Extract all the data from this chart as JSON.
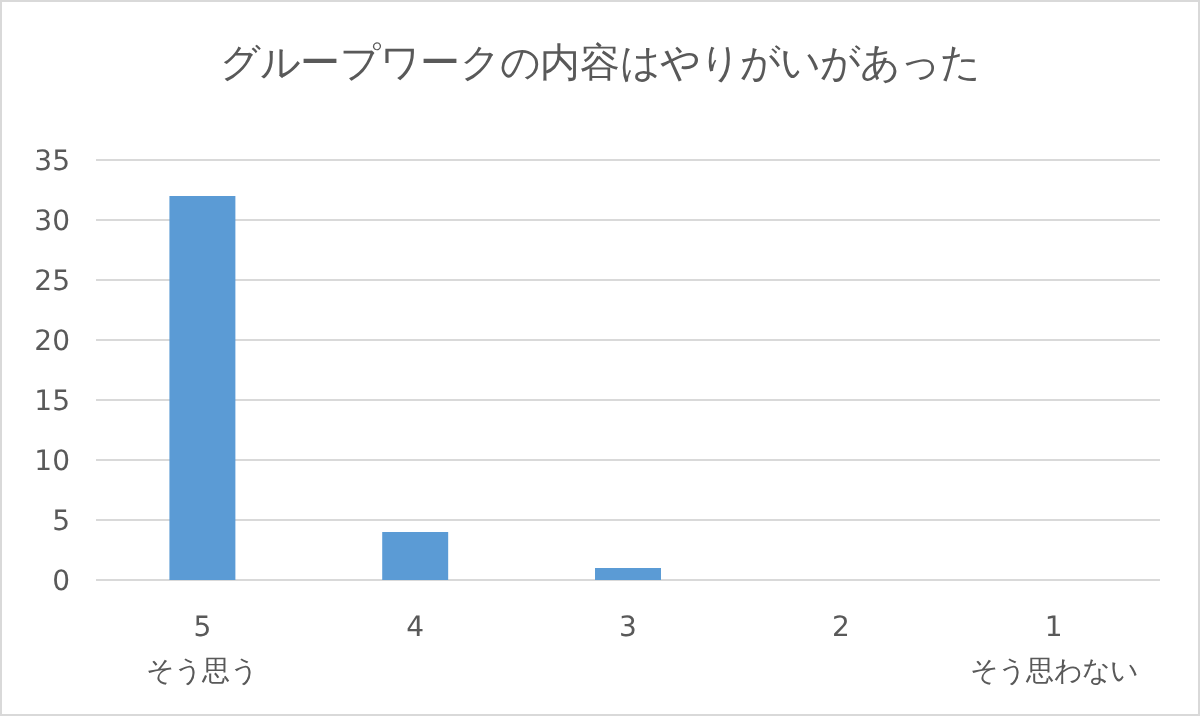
{
  "chart_data": {
    "type": "bar",
    "title": "グループワークの内容はやりがいがあった",
    "categories": [
      "5\nそう思う",
      "4",
      "3",
      "2",
      "1\nそう思わない"
    ],
    "values": [
      32,
      4,
      1,
      0,
      0
    ],
    "color": "#5b9bd5",
    "ylim": [
      0,
      35
    ],
    "yticks": [
      0,
      5,
      10,
      15,
      20,
      25,
      30,
      35
    ],
    "grid": "y"
  }
}
